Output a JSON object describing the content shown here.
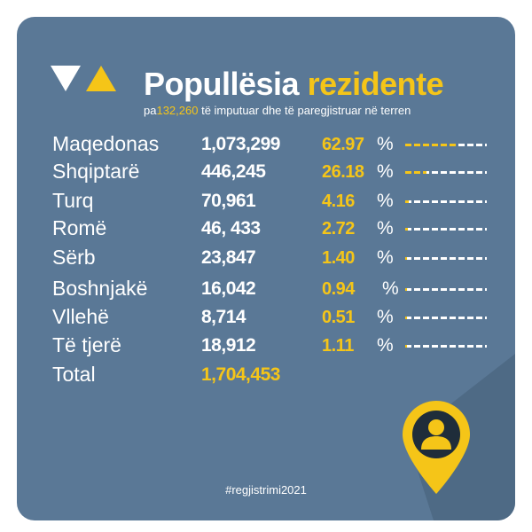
{
  "title": {
    "part1": "Popullësia",
    "part2": "rezidente"
  },
  "subtitle": {
    "prefix": "pa",
    "number": "132,260",
    "suffix": " të imputuar dhe të paregjistruar në terren"
  },
  "hashtag": "#regjistrimi2021",
  "colors": {
    "background": "#5a7896",
    "accent": "#f5c518",
    "text": "#ffffff",
    "pin_dark": "#1f2d3a"
  },
  "icons": {
    "logo": "triangle-logo",
    "pin": "location-pin-user-icon"
  },
  "chart_data": {
    "type": "table",
    "columns": [
      "group",
      "population",
      "percent"
    ],
    "rows": [
      {
        "name": "Maqedonas",
        "count": "1,073,299",
        "percent": "62.97",
        "value": 62.97
      },
      {
        "name": "Shqiptarë",
        "count": "446,245",
        "percent": "26.18",
        "value": 26.18
      },
      {
        "name": "Turq",
        "count": "70,961",
        "percent": "4.16",
        "value": 4.16
      },
      {
        "name": "Romë",
        "count": "46, 433",
        "percent": "2.72",
        "value": 2.72
      },
      {
        "name": "Sërb",
        "count": "23,847",
        "percent": "1.40",
        "value": 1.4
      },
      {
        "name": "Boshnjakë",
        "count": "16,042",
        "percent": "0.94",
        "value": 0.94
      },
      {
        "name": "Vllehë",
        "count": "8,714",
        "percent": "0.51",
        "value": 0.51
      },
      {
        "name": "Të tjerë",
        "count": "18,912",
        "percent": "1.11",
        "value": 1.11
      }
    ],
    "percent_sign": "%",
    "total": {
      "name": "Total",
      "count": "1,704,453"
    }
  }
}
